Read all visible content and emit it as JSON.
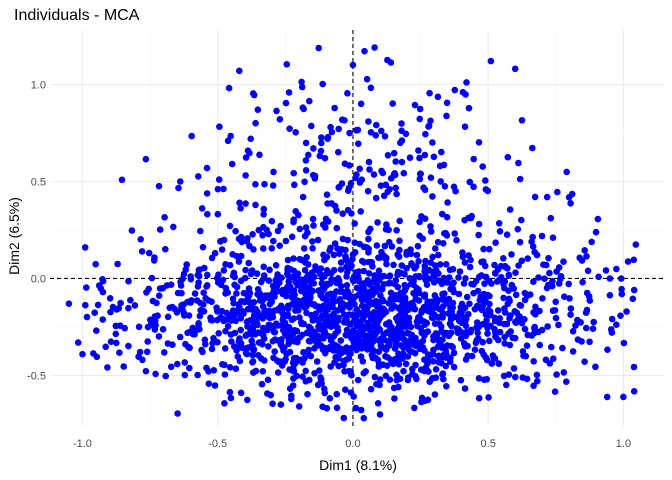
{
  "chart_data": {
    "type": "scatter",
    "title": "Individuals - MCA",
    "xlabel": "Dim1 (8.1%)",
    "ylabel": "Dim2 (6.5%)",
    "xlim": [
      -1.12,
      1.15
    ],
    "ylim": [
      -0.76,
      1.28
    ],
    "xticks": [
      -1.0,
      -0.5,
      0.0,
      0.5,
      1.0
    ],
    "xtick_labels": [
      "-1.0",
      "-0.5",
      "0.0",
      "0.5",
      "1.0"
    ],
    "yticks": [
      -0.5,
      0.0,
      0.5,
      1.0
    ],
    "ytick_labels": [
      "-0.5",
      "0.0",
      "0.5",
      "1.0"
    ],
    "grid": true,
    "reference_lines": {
      "x": 0,
      "y": 0
    },
    "point_color": "#0000ff",
    "n_points_approx": 2000,
    "generator": {
      "seed": 424242,
      "count": 2000,
      "x_mean": 0.02,
      "x_sd": 0.4,
      "y_base": -0.2,
      "y_sd_core": 0.18,
      "y_spread": 1.3,
      "bounds": {
        "x": [
          -1.05,
          1.05
        ],
        "y": [
          -0.72,
          1.19
        ]
      }
    },
    "series": [
      {
        "x": [
          -1.05,
          -1.0,
          -0.99,
          0.95,
          1.0,
          1.04,
          0.94,
          0.08,
          0.1,
          -0.42,
          -0.27,
          0.0,
          0.04,
          0.03,
          0.51,
          0.6
        ],
        "y": [
          -0.13,
          -0.39,
          0.16,
          0.0,
          -0.61,
          -0.06,
          -0.61,
          1.19,
          -0.7,
          1.07,
          0.82,
          1.1,
          -0.72,
          0.9,
          1.12,
          1.08
        ]
      }
    ]
  }
}
